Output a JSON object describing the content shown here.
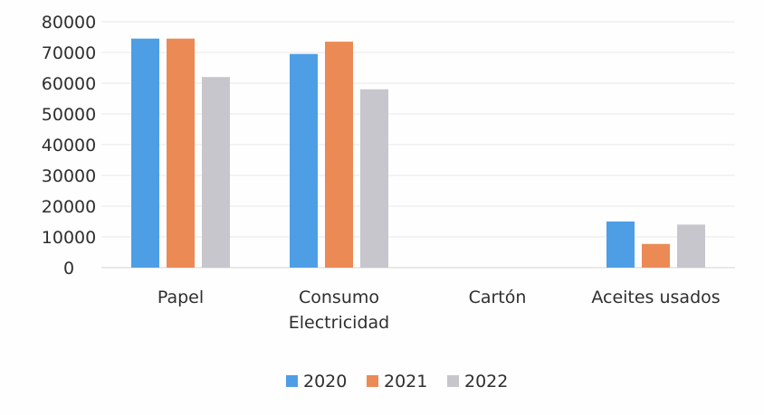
{
  "chart_data": {
    "type": "bar",
    "title": "",
    "xlabel": "",
    "ylabel": "",
    "categories": [
      [
        "Papel"
      ],
      [
        "Consumo",
        "Electricidad"
      ],
      [
        "Cartón"
      ],
      [
        "Aceites usados"
      ]
    ],
    "series": [
      {
        "name": "2020",
        "color": "#4e9ee6",
        "values": [
          74500,
          69500,
          0,
          15000
        ]
      },
      {
        "name": "2021",
        "color": "#ec8a55",
        "values": [
          74500,
          73500,
          0,
          7700
        ]
      },
      {
        "name": "2022",
        "color": "#c6c6cc",
        "values": [
          62000,
          58000,
          0,
          14000
        ]
      }
    ],
    "ylim": [
      0,
      80000
    ],
    "yticks": [
      "0",
      "10000",
      "20000",
      "30000",
      "40000",
      "50000",
      "60000",
      "70000",
      "80000"
    ],
    "grid": true,
    "legend_position": "bottom"
  }
}
